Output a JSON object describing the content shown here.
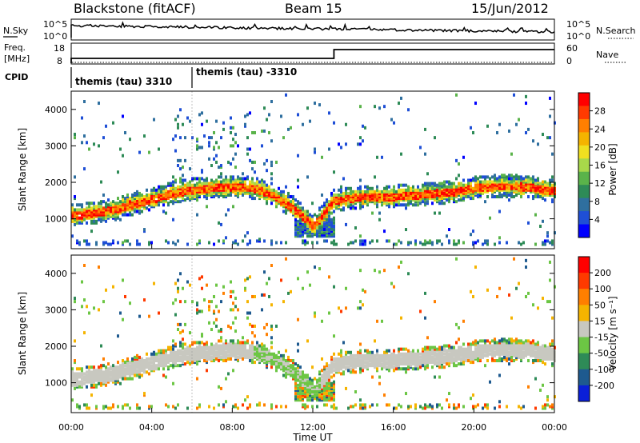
{
  "header": {
    "station": "Blackstone (fitACF)",
    "beam": "Beam 15",
    "date": "15/Jun/2012"
  },
  "noise_panel": {
    "left_label": "N.Sky",
    "left_ticks": [
      "10^5",
      "10^0"
    ],
    "right_label": "N.Search",
    "right_ticks": [
      "10^5",
      "10^0"
    ]
  },
  "freq_panel": {
    "left_label_1": "Freq.",
    "left_label_2": "[MHz]",
    "left_ticks": [
      "18",
      "8"
    ],
    "right_label": "Nave",
    "right_ticks": [
      "60",
      "0"
    ],
    "freq_step_hour": 13.05
  },
  "cpid_panel": {
    "label": "CPID",
    "program_1": "themis (tau) 3310",
    "program_1_start_hour": 0,
    "program_2": "themis (tau) -3310",
    "program_2_start_hour": 6.0
  },
  "chart_data": [
    {
      "type": "heatmap",
      "title": "",
      "ylabel": "Slant Range [km]",
      "xlabel": "",
      "x_range_hours": [
        0,
        24
      ],
      "ylim": [
        180,
        4500
      ],
      "y_ticks": [
        "4000",
        "3000",
        "2000",
        "1000"
      ],
      "colorbar": {
        "label": "Power [dB]",
        "ticks": [
          "28",
          "24",
          "20",
          "16",
          "12",
          "8",
          "4"
        ],
        "range": [
          0,
          30
        ],
        "colors": [
          "#0000ff",
          "#1f4fd6",
          "#2f6f9f",
          "#2e8b57",
          "#5ab34a",
          "#a8d84a",
          "#f0e020",
          "#f5b400",
          "#ff7f00",
          "#ff3a00",
          "#ff0000"
        ]
      },
      "echo_band_slant_range_km": {
        "hours": [
          0,
          1,
          2,
          3,
          4,
          5,
          6,
          7,
          8,
          9,
          10,
          11,
          12,
          13,
          14,
          15,
          16,
          17,
          18,
          19,
          20,
          21,
          22,
          23,
          24
        ],
        "range_km": [
          1100,
          1150,
          1250,
          1400,
          1550,
          1700,
          1800,
          1850,
          1900,
          1850,
          1650,
          1300,
          800,
          1500,
          1580,
          1600,
          1620,
          1650,
          1700,
          1750,
          1850,
          1900,
          1900,
          1850,
          1750
        ]
      }
    },
    {
      "type": "heatmap",
      "title": "",
      "ylabel": "Slant Range [km]",
      "xlabel": "Time UT",
      "x_range_hours": [
        0,
        24
      ],
      "x_ticks": [
        "00:00",
        "04:00",
        "08:00",
        "12:00",
        "16:00",
        "20:00",
        "00:00"
      ],
      "ylim": [
        180,
        4500
      ],
      "y_ticks": [
        "4000",
        "3000",
        "2000",
        "1000"
      ],
      "colorbar": {
        "label": "Velocity [m s⁻¹]",
        "ticks": [
          "200",
          "100",
          "50",
          "15",
          "-15",
          "-50",
          "-100",
          "-200"
        ],
        "colors": [
          "#0a1fd8",
          "#1e5a8f",
          "#2e8b57",
          "#6cc644",
          "#c8c8c0",
          "#f5b400",
          "#ff7f00",
          "#ff3a00",
          "#ff0000"
        ]
      },
      "ground_scatter_color": "#c8c8c0"
    }
  ]
}
